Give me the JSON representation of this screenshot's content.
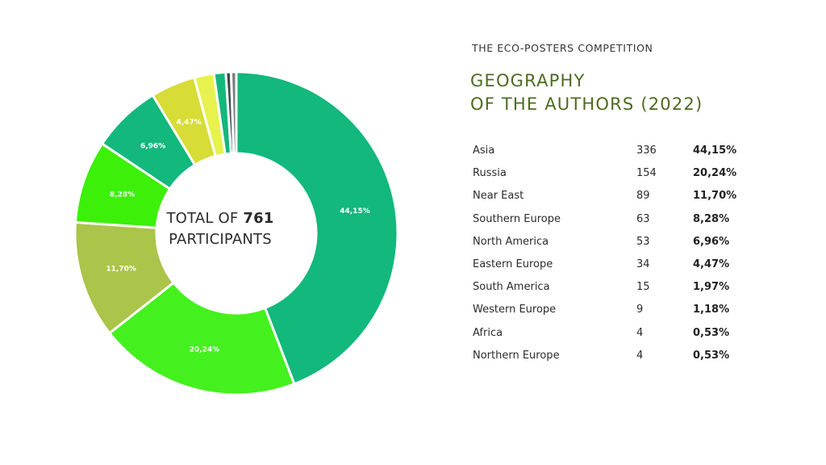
{
  "header": {
    "eyebrow": "THE ECO-POSTERS COMPETITION",
    "title_line1": "GEOGRAPHY",
    "title_line2": "OF THE AUTHORS (2022)"
  },
  "center": {
    "prefix": "TOTAL OF",
    "total": "761",
    "suffix": "PARTICIPANTS"
  },
  "chart_data": {
    "type": "pie",
    "donut": true,
    "categories": [
      "Asia",
      "Russia",
      "Near East",
      "Southern Europe",
      "North America",
      "Eastern Europe",
      "South America",
      "Western Europe",
      "Africa",
      "Northern Europe"
    ],
    "values": [
      336,
      154,
      89,
      63,
      53,
      34,
      15,
      9,
      4,
      4
    ],
    "percent_labels": [
      "44,15%",
      "20,24%",
      "11,70%",
      "8,28%",
      "6,96%",
      "4,47%",
      "1,97%",
      "1,18%",
      "0,53%",
      "0,53%"
    ],
    "slice_labels_shown": [
      true,
      true,
      true,
      true,
      true,
      true,
      false,
      false,
      false,
      false
    ],
    "colors": [
      "#12b87c",
      "#44f01e",
      "#abc44a",
      "#3cf00a",
      "#12b87c",
      "#d7dc37",
      "#e7f24e",
      "#12b87c",
      "#3a4a44",
      "#7c7c7c"
    ],
    "total": 761,
    "start": "12 o'clock",
    "direction": "clockwise"
  },
  "table": {
    "rows": [
      {
        "name": "Asia",
        "count": "336",
        "pct": "44,15%"
      },
      {
        "name": "Russia",
        "count": "154",
        "pct": "20,24%"
      },
      {
        "name": "Near East",
        "count": "89",
        "pct": "11,70%"
      },
      {
        "name": "Southern Europe",
        "count": "63",
        "pct": "8,28%"
      },
      {
        "name": "North America",
        "count": "53",
        "pct": "6,96%"
      },
      {
        "name": "Eastern Europe",
        "count": "34",
        "pct": "4,47%"
      },
      {
        "name": "South America",
        "count": "15",
        "pct": "1,97%"
      },
      {
        "name": "Western Europe",
        "count": "9",
        "pct": "1,18%"
      },
      {
        "name": "Africa",
        "count": "4",
        "pct": "0,53%"
      },
      {
        "name": "Northern Europe",
        "count": "4",
        "pct": "0,53%"
      }
    ]
  }
}
